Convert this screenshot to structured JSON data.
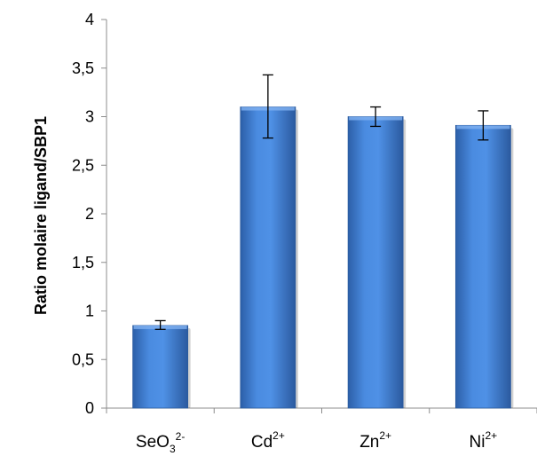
{
  "chart_data": {
    "type": "bar",
    "title": "",
    "xlabel": "",
    "ylabel": "Ratio molaire ligand/SBP1",
    "ylim": [
      0,
      4
    ],
    "yticks": [
      0,
      0.5,
      1,
      1.5,
      2,
      2.5,
      3,
      3.5,
      4
    ],
    "ytick_labels": [
      "0",
      "0,5",
      "1",
      "1,5",
      "2",
      "2,5",
      "3",
      "3,5",
      "4"
    ],
    "categories": [
      {
        "base": "SeO",
        "sub": "3",
        "sup": "2-"
      },
      {
        "base": "Cd",
        "sub": "",
        "sup": "2+"
      },
      {
        "base": "Zn",
        "sub": "",
        "sup": "2+"
      },
      {
        "base": "Ni",
        "sub": "",
        "sup": "2+"
      }
    ],
    "values": [
      0.85,
      3.1,
      3.0,
      2.91
    ],
    "error_low": [
      0.81,
      2.78,
      2.9,
      2.76
    ],
    "error_high": [
      0.9,
      3.43,
      3.1,
      3.06
    ],
    "bar_color": "#3f7fd4",
    "bar_color_dark": "#2a5a9e",
    "grid": false,
    "legend": "none"
  }
}
